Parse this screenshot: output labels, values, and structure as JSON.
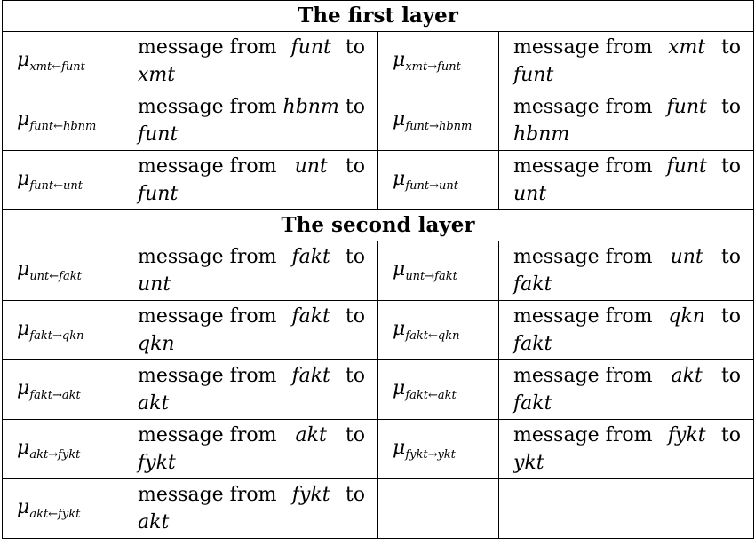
{
  "layers": [
    {
      "title": "The first layer",
      "rows": [
        {
          "left": {
            "symbol": "μ",
            "subscript": "xmt←funt",
            "desc_prefix": "message from",
            "from": "funt",
            "to_word": "to",
            "dest": "xmt"
          },
          "right": {
            "symbol": "μ",
            "subscript": "xmt→funt",
            "desc_prefix": "message from",
            "from": "xmt",
            "to_word": "to",
            "dest": "funt"
          }
        },
        {
          "left": {
            "symbol": "μ",
            "subscript": "funt←hbnm",
            "desc_prefix": "message from",
            "from": "hbnm",
            "to_word": "to",
            "dest": "funt"
          },
          "right": {
            "symbol": "μ",
            "subscript": "funt→hbnm",
            "desc_prefix": "message from",
            "from": "funt",
            "to_word": "to",
            "dest": "hbnm"
          }
        },
        {
          "left": {
            "symbol": "μ",
            "subscript": "funt←unt",
            "desc_prefix": "message from",
            "from": "unt",
            "to_word": "to",
            "dest": "funt"
          },
          "right": {
            "symbol": "μ",
            "subscript": "funt→unt",
            "desc_prefix": "message from",
            "from": "funt",
            "to_word": "to",
            "dest": "unt"
          }
        }
      ]
    },
    {
      "title": "The second layer",
      "rows": [
        {
          "left": {
            "symbol": "μ",
            "subscript": "unt←fakt",
            "desc_prefix": "message from",
            "from": "fakt",
            "to_word": "to",
            "dest": "unt"
          },
          "right": {
            "symbol": "μ",
            "subscript": "unt→fakt",
            "desc_prefix": "message from",
            "from": "unt",
            "to_word": "to",
            "dest": "fakt"
          }
        },
        {
          "left": {
            "symbol": "μ",
            "subscript": "fakt→qkn",
            "desc_prefix": "message from",
            "from": "fakt",
            "to_word": "to",
            "dest": "qkn"
          },
          "right": {
            "symbol": "μ",
            "subscript": "fakt←qkn",
            "desc_prefix": "message from",
            "from": "qkn",
            "to_word": "to",
            "dest": "fakt"
          }
        },
        {
          "left": {
            "symbol": "μ",
            "subscript": "fakt→akt",
            "desc_prefix": "message from",
            "from": "fakt",
            "to_word": "to",
            "dest": "akt"
          },
          "right": {
            "symbol": "μ",
            "subscript": "fakt←akt",
            "desc_prefix": "message from",
            "from": "akt",
            "to_word": "to",
            "dest": "fakt"
          }
        },
        {
          "left": {
            "symbol": "μ",
            "subscript": "akt→fykt",
            "desc_prefix": "message from",
            "from": "akt",
            "to_word": "to",
            "dest": "fykt"
          },
          "right": {
            "symbol": "μ",
            "subscript": "fykt→ykt",
            "desc_prefix": "message from",
            "from": "fykt",
            "to_word": "to",
            "dest": "ykt"
          }
        },
        {
          "left": {
            "symbol": "μ",
            "subscript": "akt←fykt",
            "desc_prefix": "message from",
            "from": "fykt",
            "to_word": "to",
            "dest": "akt"
          },
          "right": null
        }
      ]
    }
  ]
}
